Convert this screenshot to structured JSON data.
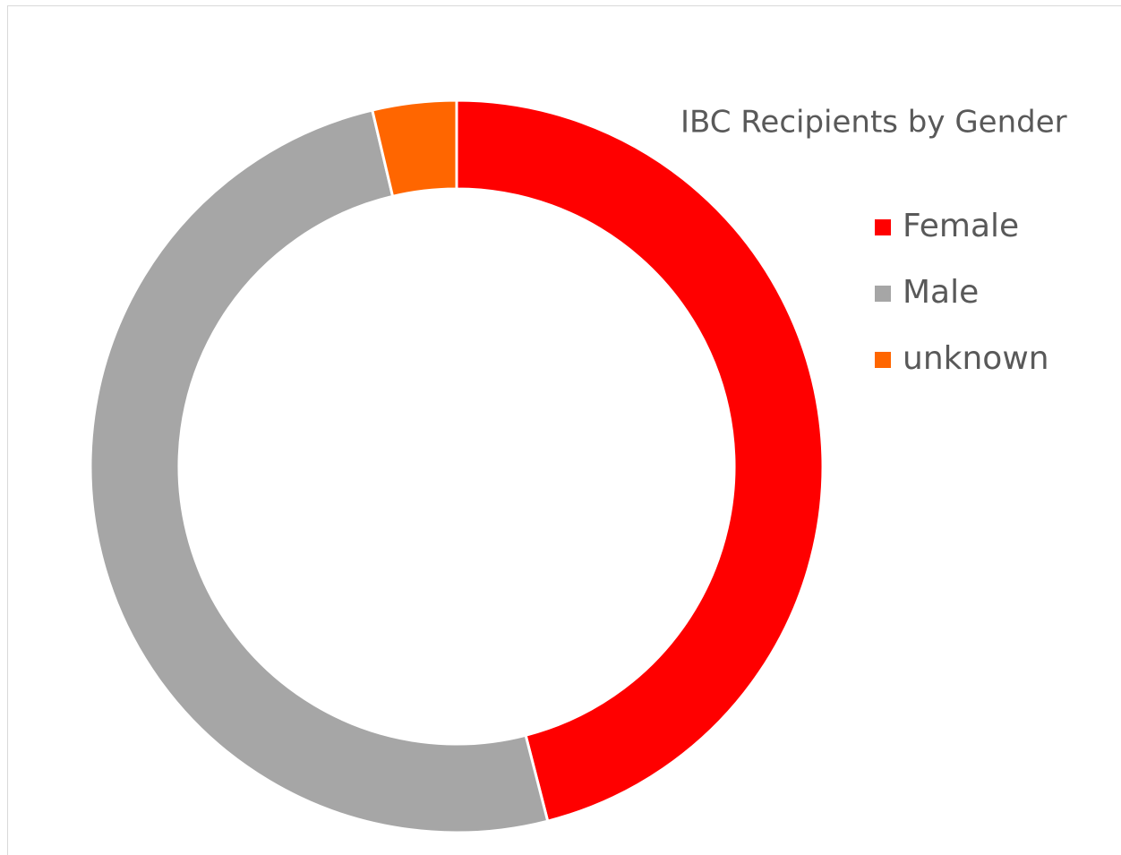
{
  "chart_data": {
    "type": "donut",
    "title": "IBC Recipients by Gender",
    "categories": [
      "Female",
      "Male",
      "unknown"
    ],
    "values": [
      46,
      50.3,
      3.7
    ],
    "colors": [
      "#ff0000",
      "#a6a6a6",
      "#ff6600"
    ],
    "legend": "right"
  }
}
